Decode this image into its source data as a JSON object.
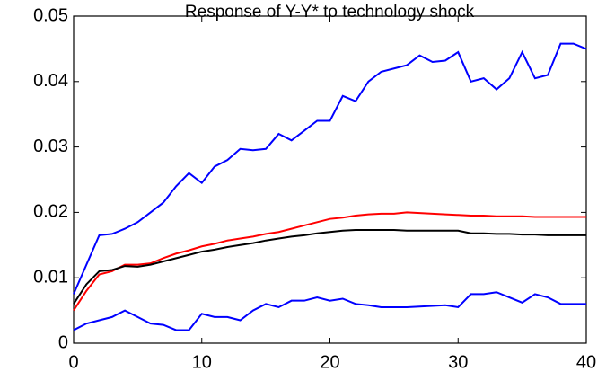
{
  "chart_data": {
    "type": "line",
    "title": "Response of Y-Y* to technology shock",
    "x": [
      0,
      1,
      2,
      3,
      4,
      5,
      6,
      7,
      8,
      9,
      10,
      11,
      12,
      13,
      14,
      15,
      16,
      17,
      18,
      19,
      20,
      21,
      22,
      23,
      24,
      25,
      26,
      27,
      28,
      29,
      30,
      31,
      32,
      33,
      34,
      35,
      36,
      37,
      38,
      39,
      40
    ],
    "series": [
      {
        "color": "#0000ff",
        "values": [
          0.0075,
          0.012,
          0.0165,
          0.0167,
          0.0175,
          0.0185,
          0.02,
          0.0215,
          0.024,
          0.026,
          0.0245,
          0.027,
          0.028,
          0.0297,
          0.0295,
          0.0297,
          0.032,
          0.031,
          0.0325,
          0.034,
          0.034,
          0.0378,
          0.037,
          0.04,
          0.0415,
          0.042,
          0.0425,
          0.044,
          0.043,
          0.0432,
          0.0445,
          0.04,
          0.0405,
          0.0388,
          0.0405,
          0.0445,
          0.0405,
          0.041,
          0.0458,
          0.0458,
          0.045
        ]
      },
      {
        "color": "#ff0000",
        "values": [
          0.005,
          0.008,
          0.0105,
          0.011,
          0.012,
          0.012,
          0.0122,
          0.013,
          0.0137,
          0.0142,
          0.0148,
          0.0152,
          0.0157,
          0.016,
          0.0163,
          0.0167,
          0.017,
          0.0175,
          0.018,
          0.0185,
          0.019,
          0.0192,
          0.0195,
          0.0197,
          0.0198,
          0.0198,
          0.02,
          0.0199,
          0.0198,
          0.0197,
          0.0196,
          0.0195,
          0.0195,
          0.0194,
          0.0194,
          0.0194,
          0.0193,
          0.0193,
          0.0193,
          0.0193,
          0.0193
        ]
      },
      {
        "color": "#000000",
        "values": [
          0.006,
          0.009,
          0.011,
          0.0112,
          0.0118,
          0.0117,
          0.012,
          0.0125,
          0.013,
          0.0135,
          0.014,
          0.0143,
          0.0147,
          0.015,
          0.0153,
          0.0157,
          0.016,
          0.0163,
          0.0165,
          0.0168,
          0.017,
          0.0172,
          0.0173,
          0.0173,
          0.0173,
          0.0173,
          0.0172,
          0.0172,
          0.0172,
          0.0172,
          0.0172,
          0.0168,
          0.0168,
          0.0167,
          0.0167,
          0.0166,
          0.0166,
          0.0165,
          0.0165,
          0.0165,
          0.0165
        ]
      },
      {
        "color": "#0000ff",
        "values": [
          0.002,
          0.003,
          0.0035,
          0.004,
          0.005,
          0.004,
          0.003,
          0.0028,
          0.002,
          0.002,
          0.0045,
          0.004,
          0.004,
          0.0035,
          0.005,
          0.006,
          0.0055,
          0.0065,
          0.0065,
          0.007,
          0.0065,
          0.0068,
          0.006,
          0.0058,
          0.0055,
          0.0055,
          0.0055,
          0.0056,
          0.0057,
          0.0058,
          0.0055,
          0.0075,
          0.0075,
          0.0078,
          0.007,
          0.0062,
          0.0075,
          0.007,
          0.006,
          0.006,
          0.006
        ]
      }
    ],
    "xlim": [
      0,
      40
    ],
    "xticks": [
      0,
      10,
      20,
      30,
      40
    ],
    "ylim": [
      0,
      0.05
    ],
    "yticks": [
      0,
      0.01,
      0.02,
      0.03,
      0.04,
      0.05
    ]
  }
}
